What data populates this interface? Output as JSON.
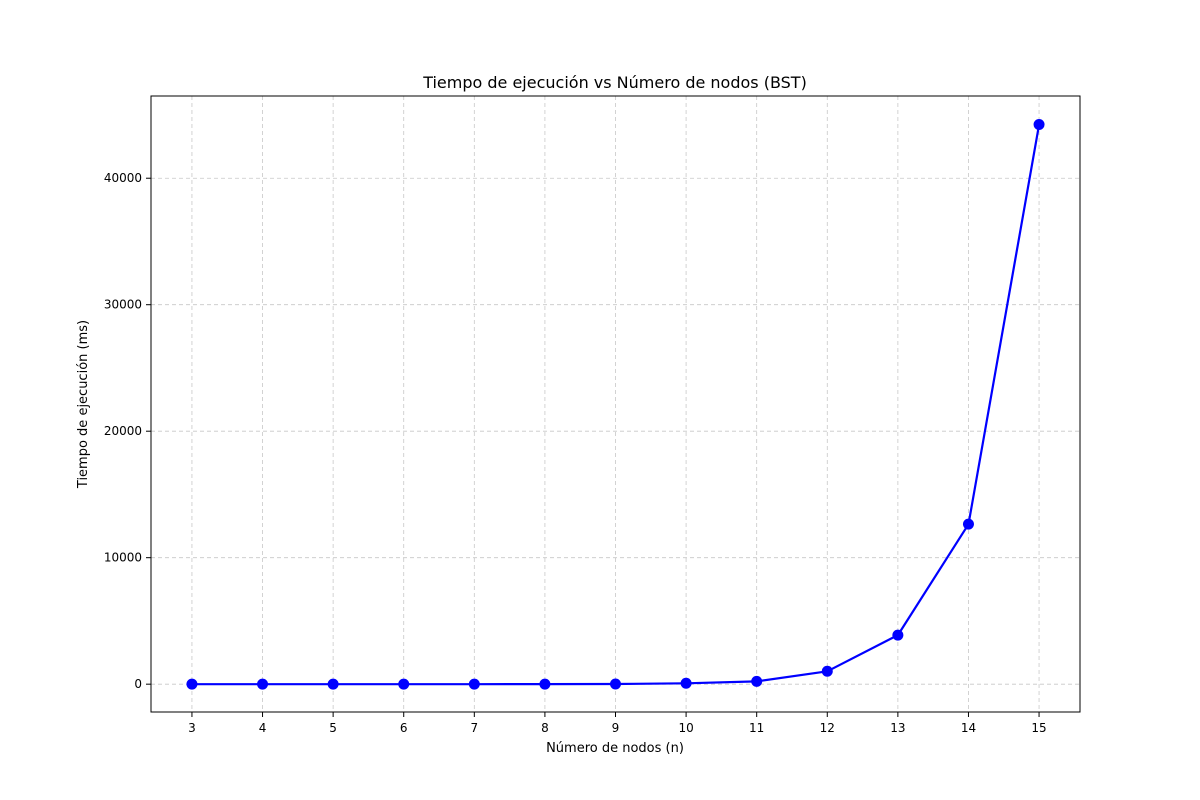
{
  "chart_data": {
    "type": "line",
    "title": "Tiempo de ejecución vs Número de nodos (BST)",
    "xlabel": "Número de nodos (n)",
    "ylabel": "Tiempo de ejecución (ms)",
    "x": [
      3,
      4,
      5,
      6,
      7,
      8,
      9,
      10,
      11,
      12,
      13,
      14,
      15
    ],
    "series": [
      {
        "values": [
          0,
          0,
          0,
          0,
          0,
          2,
          10,
          70,
          220,
          1020,
          3880,
          12650,
          44250
        ],
        "color": "#0000ff",
        "marker": "circle"
      }
    ],
    "xlim": [
      2.42,
      15.58
    ],
    "ylim": [
      -2200,
      46500
    ],
    "xticks": [
      "3",
      "4",
      "5",
      "6",
      "7",
      "8",
      "9",
      "10",
      "11",
      "12",
      "13",
      "14",
      "15"
    ],
    "yticks": [
      0,
      10000,
      20000,
      30000,
      40000
    ],
    "ytick_labels": [
      "0",
      "10000",
      "20000",
      "30000",
      "40000"
    ],
    "grid": true,
    "grid_style": "dashed"
  }
}
